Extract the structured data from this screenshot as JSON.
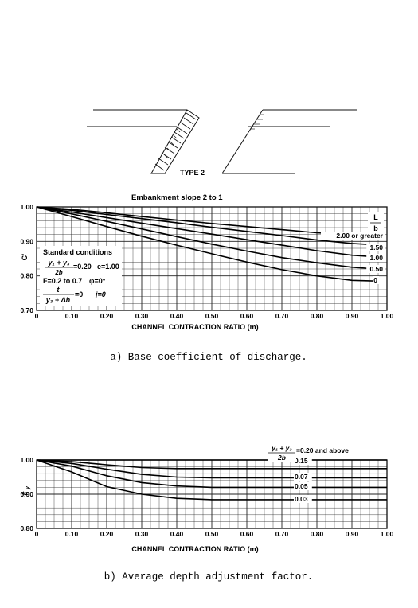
{
  "diagram": {
    "label": "TYPE 2"
  },
  "chart_data": [
    {
      "type": "line",
      "title": "Embankment slope 2 to 1",
      "xlabel": "CHANNEL CONTRACTION RATIO (m)",
      "ylabel": "C'",
      "xlim": [
        0,
        1.0
      ],
      "ylim": [
        0.7,
        1.0
      ],
      "grid": true,
      "x_ticks": [
        "0",
        "0.10",
        "0.20",
        "0.30",
        "0.40",
        "0.50",
        "0.60",
        "0.70",
        "0.80",
        "0.90",
        "1.00"
      ],
      "y_ticks": [
        "0.70",
        "0.80",
        "0.90",
        "1.00"
      ],
      "legend_title": "L / b",
      "legend_title_parts": [
        "L",
        "b"
      ],
      "standard_conditions": {
        "heading": "Standard conditions",
        "lines": [
          "(y₁ + y₃)/2b = 0.20   e=1.00",
          "F=0.2 to 0.7   φ=0°",
          "t/(y₃ + Δh) = 0   j=0"
        ],
        "fraction1_num": "y₁ + y₃",
        "fraction1_den": "2b",
        "fraction1_val": "=0.20",
        "e_text": "e=1.00",
        "f_text": "F=0.2 to 0.7",
        "phi_text": "φ=0°",
        "fraction2_num": "t",
        "fraction2_den": "y₃ + Δh",
        "fraction2_val": "=0",
        "j_text": "j=0"
      },
      "series": [
        {
          "name": "2.00 or greater",
          "x": [
            0,
            0.1,
            0.2,
            0.3,
            0.4,
            0.5,
            0.6,
            0.7,
            0.8,
            0.9,
            0.97
          ],
          "y": [
            1.0,
            0.993,
            0.983,
            0.972,
            0.962,
            0.952,
            0.943,
            0.934,
            0.925,
            0.918,
            0.914
          ]
        },
        {
          "name": "1.50",
          "x": [
            0,
            0.1,
            0.2,
            0.3,
            0.4,
            0.5,
            0.6,
            0.7,
            0.8,
            0.9,
            0.97
          ],
          "y": [
            1.0,
            0.99,
            0.978,
            0.966,
            0.954,
            0.941,
            0.929,
            0.917,
            0.904,
            0.894,
            0.89
          ]
        },
        {
          "name": "1.00",
          "x": [
            0,
            0.1,
            0.2,
            0.3,
            0.4,
            0.5,
            0.6,
            0.7,
            0.8,
            0.9,
            0.97
          ],
          "y": [
            1.0,
            0.985,
            0.969,
            0.953,
            0.937,
            0.921,
            0.905,
            0.889,
            0.873,
            0.86,
            0.855
          ]
        },
        {
          "name": "0.50",
          "x": [
            0,
            0.1,
            0.2,
            0.3,
            0.4,
            0.5,
            0.6,
            0.7,
            0.8,
            0.9,
            0.97
          ],
          "y": [
            1.0,
            0.98,
            0.958,
            0.936,
            0.914,
            0.892,
            0.872,
            0.853,
            0.838,
            0.825,
            0.82
          ]
        },
        {
          "name": "0",
          "x": [
            0,
            0.1,
            0.2,
            0.3,
            0.4,
            0.5,
            0.6,
            0.7,
            0.8,
            0.9,
            0.97
          ],
          "y": [
            1.0,
            0.972,
            0.943,
            0.915,
            0.889,
            0.864,
            0.84,
            0.818,
            0.8,
            0.787,
            0.785
          ]
        }
      ]
    },
    {
      "type": "line",
      "xlabel": "CHANNEL CONTRACTION RATIO (m)",
      "ylabel": "k_y",
      "xlim": [
        0,
        1.0
      ],
      "ylim": [
        0.8,
        1.0
      ],
      "grid": true,
      "x_ticks": [
        "0",
        "0.10",
        "0.20",
        "0.30",
        "0.40",
        "0.50",
        "0.60",
        "0.70",
        "0.80",
        "0.90",
        "1.00"
      ],
      "y_ticks": [
        "0.80",
        "0.90",
        "1.00"
      ],
      "legend_title": "(y₁ + y₃)/2b",
      "legend_title_num": "y₁ + y₃",
      "legend_title_den": "2b",
      "series": [
        {
          "name": "=0.20 and above",
          "x": [
            0,
            1.0
          ],
          "y": [
            1.0,
            1.0
          ]
        },
        {
          "name": "0.15",
          "x": [
            0,
            0.1,
            0.2,
            0.3,
            0.4,
            0.5,
            0.6,
            0.7,
            0.8,
            0.9,
            1.0
          ],
          "y": [
            1.0,
            0.995,
            0.986,
            0.978,
            0.975,
            0.975,
            0.975,
            0.975,
            0.975,
            0.975,
            0.975
          ]
        },
        {
          "name": "0.07",
          "x": [
            0,
            0.1,
            0.2,
            0.3,
            0.4,
            0.5,
            0.6,
            0.7,
            0.8,
            0.9,
            1.0
          ],
          "y": [
            1.0,
            0.99,
            0.973,
            0.958,
            0.95,
            0.948,
            0.948,
            0.948,
            0.948,
            0.948,
            0.948
          ]
        },
        {
          "name": "0.05",
          "x": [
            0,
            0.1,
            0.2,
            0.3,
            0.4,
            0.5,
            0.6,
            0.7,
            0.8,
            0.9,
            1.0
          ],
          "y": [
            1.0,
            0.982,
            0.954,
            0.934,
            0.924,
            0.92,
            0.92,
            0.92,
            0.92,
            0.92,
            0.92
          ]
        },
        {
          "name": "0.03",
          "x": [
            0,
            0.1,
            0.2,
            0.3,
            0.4,
            0.5,
            0.6,
            0.7,
            0.8,
            0.9,
            1.0
          ],
          "y": [
            1.0,
            0.965,
            0.922,
            0.9,
            0.888,
            0.884,
            0.884,
            0.884,
            0.884,
            0.884,
            0.884
          ]
        }
      ]
    }
  ],
  "captions": {
    "a": "a) Base coefficient of discharge.",
    "b": "b) Average depth adjustment factor."
  }
}
